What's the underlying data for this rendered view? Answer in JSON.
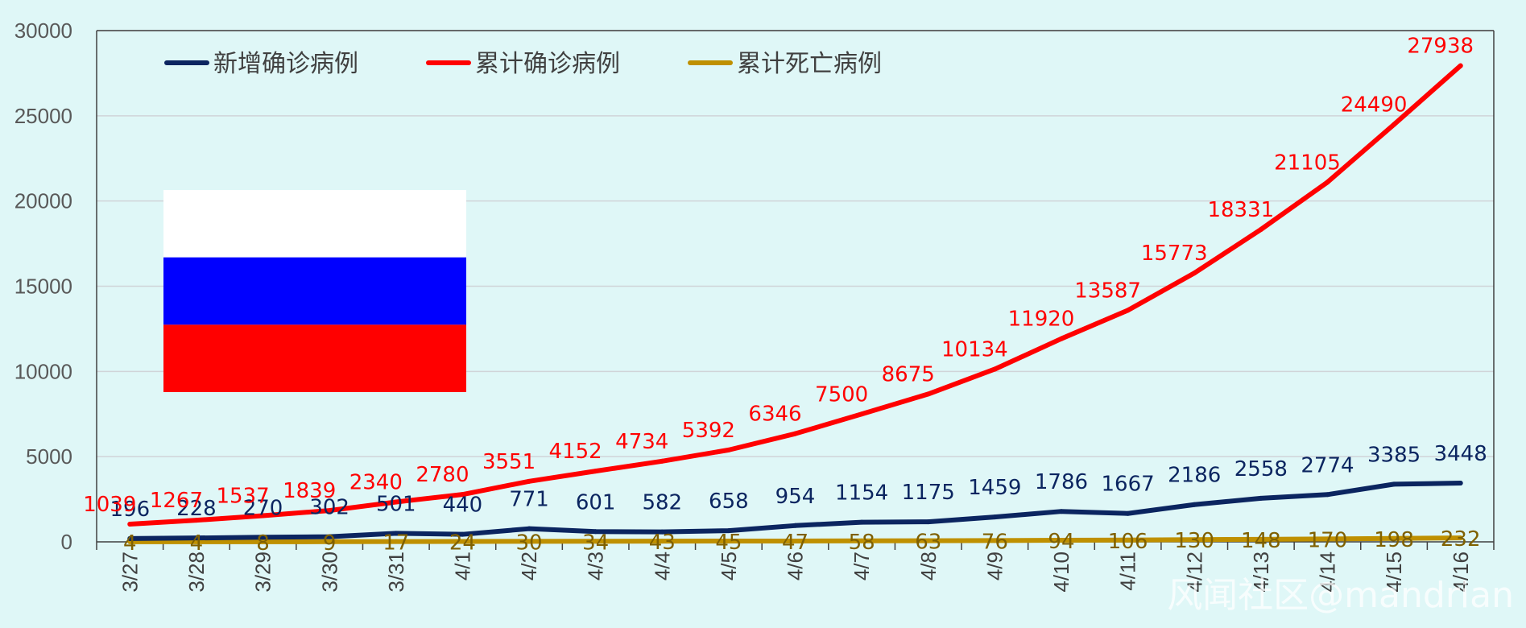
{
  "colors": {
    "background": "#dff7f7",
    "new_cases": "#0b2560",
    "total_cases": "#ff0000",
    "total_deaths": "#bf9000",
    "death_labels": "#7f6000",
    "flag_white": "#ffffff",
    "flag_blue": "#0000ff",
    "flag_red": "#ff0000"
  },
  "legend": {
    "position": "top-left",
    "items": [
      {
        "label": "新增确诊病例",
        "color_key": "new_cases"
      },
      {
        "label": "累计确诊病例",
        "color_key": "total_cases"
      },
      {
        "label": "累计死亡病例",
        "color_key": "total_deaths"
      }
    ]
  },
  "flag": {
    "name": "russia-flag"
  },
  "watermark": "风闻社区@mandrian",
  "chart_data": {
    "type": "line",
    "categories": [
      "3/27",
      "3/28",
      "3/29",
      "3/30",
      "3/31",
      "4/1",
      "4/2",
      "4/3",
      "4/4",
      "4/5",
      "4/6",
      "4/7",
      "4/8",
      "4/9",
      "4/10",
      "4/11",
      "4/12",
      "4/13",
      "4/14",
      "4/15",
      "4/16"
    ],
    "ylim": [
      0,
      30000
    ],
    "yticks": [
      0,
      5000,
      10000,
      15000,
      20000,
      25000,
      30000
    ],
    "grid": true,
    "series": [
      {
        "name": "新增确诊病例",
        "color_key": "new_cases",
        "values": [
          196,
          228,
          270,
          302,
          501,
          440,
          771,
          601,
          582,
          658,
          954,
          1154,
          1175,
          1459,
          1786,
          1667,
          2186,
          2558,
          2774,
          3385,
          3448
        ]
      },
      {
        "name": "累计确诊病例",
        "color_key": "total_cases",
        "values": [
          1039,
          1267,
          1537,
          1839,
          2340,
          2780,
          3551,
          4152,
          4734,
          5392,
          6346,
          7500,
          8675,
          10134,
          11920,
          13587,
          15773,
          18331,
          21105,
          24490,
          27938
        ]
      },
      {
        "name": "累计死亡病例",
        "color_key": "total_deaths",
        "values": [
          4,
          4,
          8,
          9,
          17,
          24,
          30,
          34,
          43,
          45,
          47,
          58,
          63,
          76,
          94,
          106,
          130,
          148,
          170,
          198,
          232
        ]
      }
    ]
  }
}
